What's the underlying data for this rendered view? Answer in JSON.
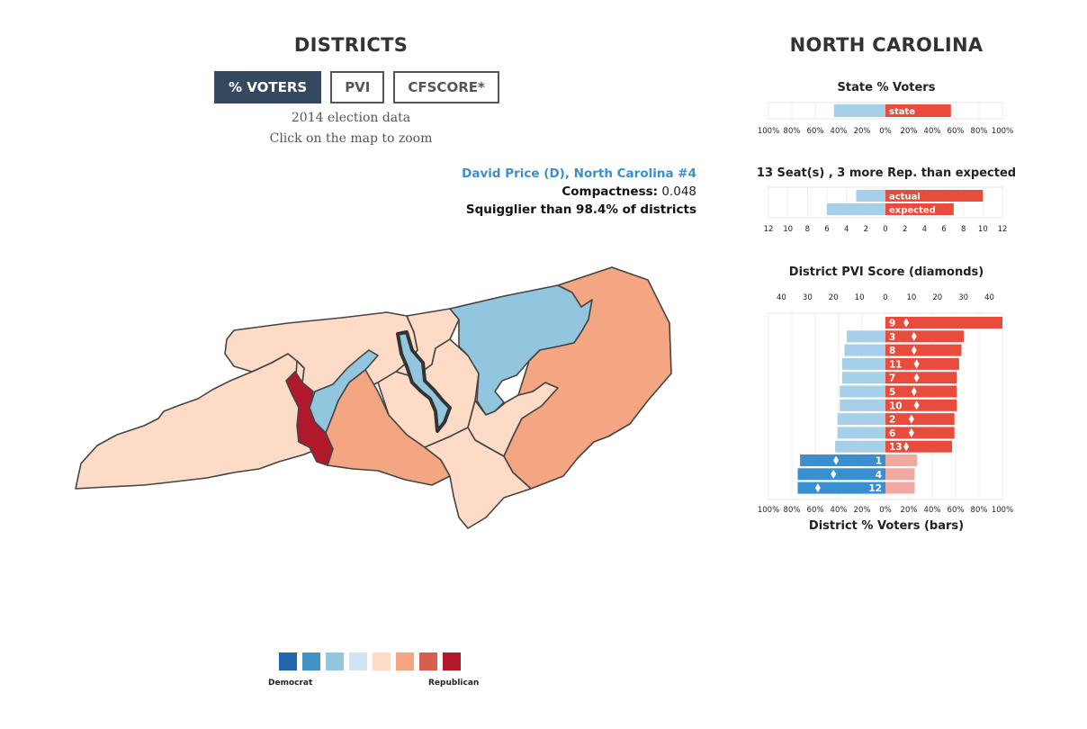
{
  "left_panel": {
    "title": "DISTRICTS",
    "tabs": [
      {
        "label": "% VOTERS",
        "active": true
      },
      {
        "label": "PVI",
        "active": false
      },
      {
        "label": "CFSCORE*",
        "active": false
      }
    ],
    "election_note": "2014 election data",
    "zoom_note": "Click on the map to zoom",
    "district_info": {
      "name": "David Price (D), North Carolina #4",
      "compactness_label": "Compactness:",
      "compactness_value": "0.048",
      "squiggle_text": "Squigglier than 98.4% of districts"
    },
    "legend": {
      "colors": [
        "#2166ac",
        "#4393c3",
        "#92c5de",
        "#d1e5f0",
        "#fddbc7",
        "#f4a582",
        "#d6604d",
        "#b2182b"
      ],
      "left_label": "Democrat",
      "right_label": "Republican"
    }
  },
  "right_panel": {
    "title": "NORTH CAROLINA",
    "state_title": "State % Voters",
    "seats_title": "13 Seat(s) , 3 more Rep. than expected",
    "pvi_title": "District PVI Score (diamonds)",
    "bars_title": "District % Voters (bars)"
  },
  "chart_data": [
    {
      "type": "bar",
      "title": "State % Voters",
      "categories": [
        "state"
      ],
      "series": [
        {
          "party": "D",
          "values": [
            44
          ]
        },
        {
          "party": "R",
          "values": [
            56
          ]
        }
      ],
      "x_ticks": [
        "100%",
        "80%",
        "60%",
        "40%",
        "20%",
        "0%",
        "20%",
        "40%",
        "60%",
        "80%",
        "100%"
      ],
      "xlim": [
        -100,
        100
      ]
    },
    {
      "type": "bar",
      "title": "13 Seat(s) , 3 more Rep. than expected",
      "categories": [
        "actual",
        "expected"
      ],
      "series": [
        {
          "party": "D",
          "values": [
            3,
            6
          ]
        },
        {
          "party": "R",
          "values": [
            10,
            7
          ]
        }
      ],
      "x_ticks": [
        "12",
        "10",
        "8",
        "6",
        "4",
        "2",
        "0",
        "2",
        "4",
        "6",
        "8",
        "10",
        "12"
      ],
      "xlim": [
        -12,
        12
      ]
    },
    {
      "type": "bar",
      "title": "District PVI Score (diamonds)",
      "xlabel": "District % Voters (bars)",
      "top_ticks": [
        "40",
        "30",
        "20",
        "10",
        "0",
        "10",
        "20",
        "30",
        "40"
      ],
      "bottom_ticks": [
        "100%",
        "80%",
        "60%",
        "40%",
        "20%",
        "0%",
        "20%",
        "40%",
        "60%",
        "80%",
        "100%"
      ],
      "pvi_lim": [
        -45,
        45
      ],
      "pct_lim": [
        -100,
        100
      ],
      "districts": [
        {
          "label": "9",
          "dem": 0,
          "rep": 100,
          "pvi": 8
        },
        {
          "label": "3",
          "dem": 33,
          "rep": 67,
          "pvi": 11
        },
        {
          "label": "8",
          "dem": 35,
          "rep": 65,
          "pvi": 11
        },
        {
          "label": "11",
          "dem": 37,
          "rep": 63,
          "pvi": 12
        },
        {
          "label": "7",
          "dem": 37,
          "rep": 61,
          "pvi": 12
        },
        {
          "label": "5",
          "dem": 39,
          "rep": 61,
          "pvi": 11
        },
        {
          "label": "10",
          "dem": 39,
          "rep": 61,
          "pvi": 12
        },
        {
          "label": "2",
          "dem": 41,
          "rep": 59,
          "pvi": 10
        },
        {
          "label": "6",
          "dem": 41,
          "rep": 59,
          "pvi": 10
        },
        {
          "label": "13",
          "dem": 43,
          "rep": 57,
          "pvi": 8
        },
        {
          "label": "1",
          "dem": 73,
          "rep": 27,
          "pvi": -19
        },
        {
          "label": "4",
          "dem": 75,
          "rep": 25,
          "pvi": -20
        },
        {
          "label": "12",
          "dem": 75,
          "rep": 25,
          "pvi": -26
        }
      ]
    }
  ]
}
